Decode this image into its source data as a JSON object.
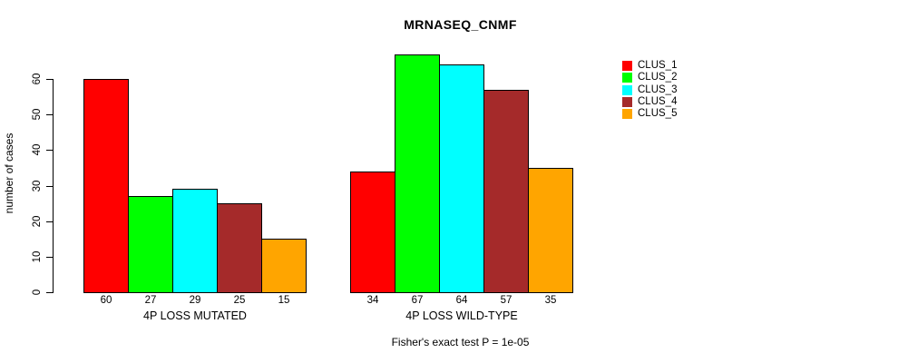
{
  "chart_data": {
    "type": "bar",
    "title": "MRNASEQ_CNMF",
    "ylabel": "number of cases",
    "xlabel": "",
    "ylim": [
      0,
      60
    ],
    "yticks": [
      0,
      10,
      20,
      30,
      40,
      50,
      60
    ],
    "grid": false,
    "legend_position": "right",
    "background": "#ffffff",
    "axis_color": "#000000",
    "bar_value_labels_shown": true,
    "categories": [
      "4P LOSS MUTATED",
      "4P LOSS WILD-TYPE"
    ],
    "series": [
      {
        "name": "CLUS_1",
        "color": "#ff0000",
        "values": [
          60,
          34
        ]
      },
      {
        "name": "CLUS_2",
        "color": "#00ff00",
        "values": [
          27,
          67
        ]
      },
      {
        "name": "CLUS_3",
        "color": "#00ffff",
        "values": [
          29,
          64
        ]
      },
      {
        "name": "CLUS_4",
        "color": "#a52a2a",
        "values": [
          25,
          57
        ]
      },
      {
        "name": "CLUS_5",
        "color": "#ffa500",
        "values": [
          15,
          35
        ]
      }
    ],
    "footnote": "Fisher's exact test P = 1e-05"
  }
}
